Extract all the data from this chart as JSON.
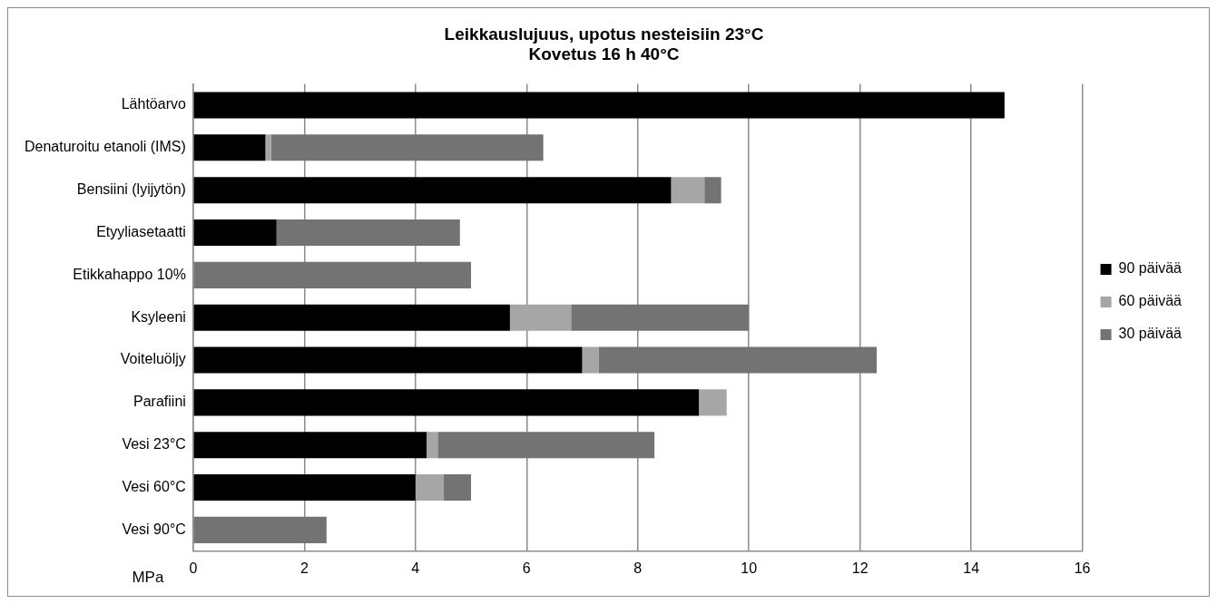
{
  "chart_data": {
    "type": "bar",
    "orientation": "horizontal",
    "stacked": true,
    "title": [
      "Leikkauslujuus, upotus nesteisiin 23°C",
      "Kovetus 16 h 40°C"
    ],
    "xlabel": "MPa",
    "categories": [
      "Lähtöarvo",
      "Denaturoitu etanoli (IMS)",
      "Bensiini (lyijytön)",
      "Etyyliasetaatti",
      "Etikkahappo 10%",
      "Ksyleeni",
      "Voiteluöljy",
      "Parafiini",
      "Vesi 23°C",
      "Vesi 60°C",
      "Vesi 90°C"
    ],
    "series": [
      {
        "name": "90 päivää",
        "color": "#000000",
        "values": [
          14.6,
          1.3,
          8.6,
          1.5,
          null,
          5.7,
          7.0,
          9.1,
          4.2,
          4.0,
          null
        ]
      },
      {
        "name": "60 päivää",
        "color": "#a6a6a6",
        "values": [
          null,
          0.1,
          0.6,
          null,
          null,
          1.1,
          0.3,
          0.5,
          0.2,
          0.5,
          null
        ]
      },
      {
        "name": "30 päivää",
        "color": "#737373",
        "values": [
          null,
          4.9,
          0.3,
          3.3,
          5.0,
          3.2,
          5.0,
          null,
          3.9,
          0.5,
          2.4
        ]
      }
    ],
    "xlim": [
      0,
      16
    ],
    "xticks": [
      0,
      2,
      4,
      6,
      8,
      10,
      12,
      14,
      16
    ],
    "grid": "x",
    "legend": "right"
  }
}
